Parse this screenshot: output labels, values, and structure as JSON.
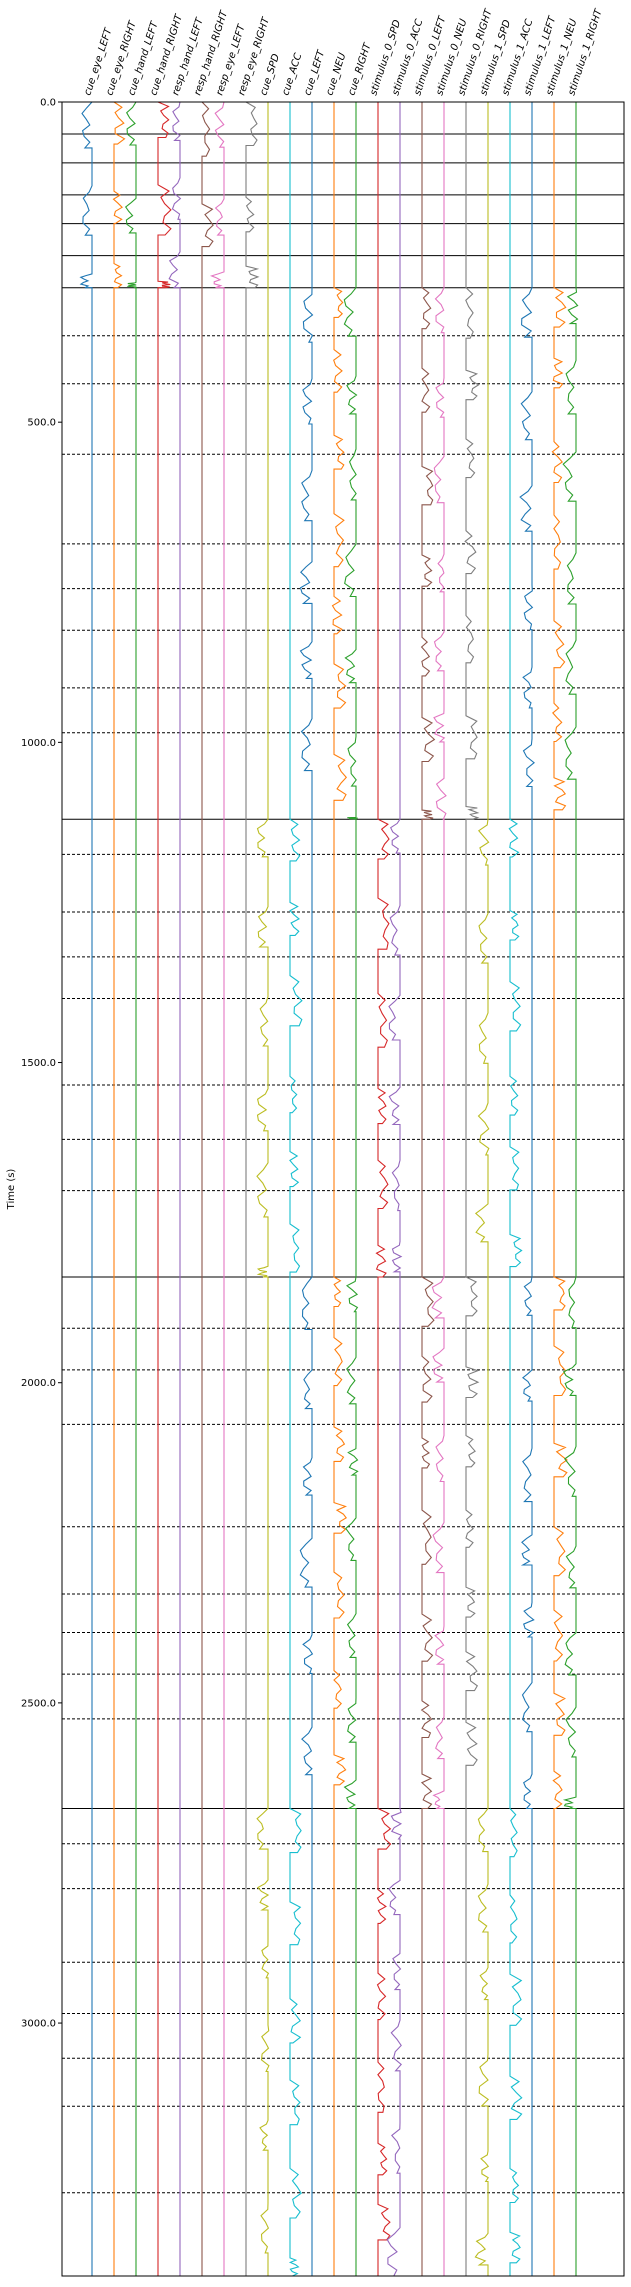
{
  "chart_data": {
    "type": "line",
    "title": "",
    "ylabel": "Time (s)",
    "ylim": [
      0,
      3395
    ],
    "y_inverted": true,
    "yticks": [
      0.0,
      500.0,
      1000.0,
      1500.0,
      2000.0,
      2500.0,
      3000.0
    ],
    "ytick_labels": [
      "0.0",
      "500.0",
      "1000.0",
      "1500.0",
      "2000.0",
      "2500.0",
      "3000.0"
    ],
    "channels": [
      {
        "name": "cue_eye_LEFT",
        "color": "#1f77b4"
      },
      {
        "name": "cue_eye_RIGHT",
        "color": "#ff7f0e"
      },
      {
        "name": "cue_hand_LEFT",
        "color": "#2ca02c"
      },
      {
        "name": "cue_hand_RIGHT",
        "color": "#d62728"
      },
      {
        "name": "resp_hand_LEFT",
        "color": "#9467bd"
      },
      {
        "name": "resp_hand_RIGHT",
        "color": "#8c564b"
      },
      {
        "name": "resp_eye_LEFT",
        "color": "#e377c2"
      },
      {
        "name": "resp_eye_RIGHT",
        "color": "#7f7f7f"
      },
      {
        "name": "cue_SPD",
        "color": "#bcbd22"
      },
      {
        "name": "cue_ACC",
        "color": "#17becf"
      },
      {
        "name": "cue_LEFT",
        "color": "#1f77b4"
      },
      {
        "name": "cue_NEU",
        "color": "#ff7f0e"
      },
      {
        "name": "cue_RIGHT",
        "color": "#2ca02c"
      },
      {
        "name": "stimulus_0_SPD",
        "color": "#d62728"
      },
      {
        "name": "stimulus_0_ACC",
        "color": "#9467bd"
      },
      {
        "name": "stimulus_0_LEFT",
        "color": "#8c564b"
      },
      {
        "name": "stimulus_0_NEU",
        "color": "#e377c2"
      },
      {
        "name": "stimulus_0_RIGHT",
        "color": "#7f7f7f"
      },
      {
        "name": "stimulus_1_SPD",
        "color": "#bcbd22"
      },
      {
        "name": "stimulus_1_ACC",
        "color": "#17becf"
      },
      {
        "name": "stimulus_1_LEFT",
        "color": "#1f77b4"
      },
      {
        "name": "stimulus_1_NEU",
        "color": "#ff7f0e"
      },
      {
        "name": "stimulus_1_RIGHT",
        "color": "#2ca02c"
      }
    ],
    "segments": [
      {
        "start": 0,
        "end": 290,
        "active": [
          0,
          1,
          2,
          3,
          4,
          5,
          6,
          7
        ]
      },
      {
        "start": 290,
        "end": 1120,
        "active": [
          10,
          11,
          12,
          15,
          16,
          17,
          20,
          21,
          22
        ]
      },
      {
        "start": 1120,
        "end": 1835,
        "active": [
          8,
          9,
          13,
          14,
          18,
          19
        ]
      },
      {
        "start": 1835,
        "end": 2665,
        "active": [
          10,
          11,
          12,
          15,
          16,
          17,
          20,
          21,
          22
        ]
      },
      {
        "start": 2665,
        "end": 3395,
        "active": [
          8,
          9,
          13,
          14,
          18,
          19
        ]
      }
    ],
    "solid_hlines": [
      0,
      50,
      95,
      145,
      190,
      240,
      290,
      1120,
      1835,
      2665
    ],
    "dashed_hlines": [
      365,
      440,
      550,
      690,
      760,
      825,
      915,
      985,
      1175,
      1265,
      1335,
      1400,
      1535,
      1620,
      1700,
      1915,
      1980,
      2065,
      2225,
      2330,
      2390,
      2455,
      2525,
      2720,
      2790,
      2905,
      2985,
      3055,
      3130,
      3265
    ]
  }
}
